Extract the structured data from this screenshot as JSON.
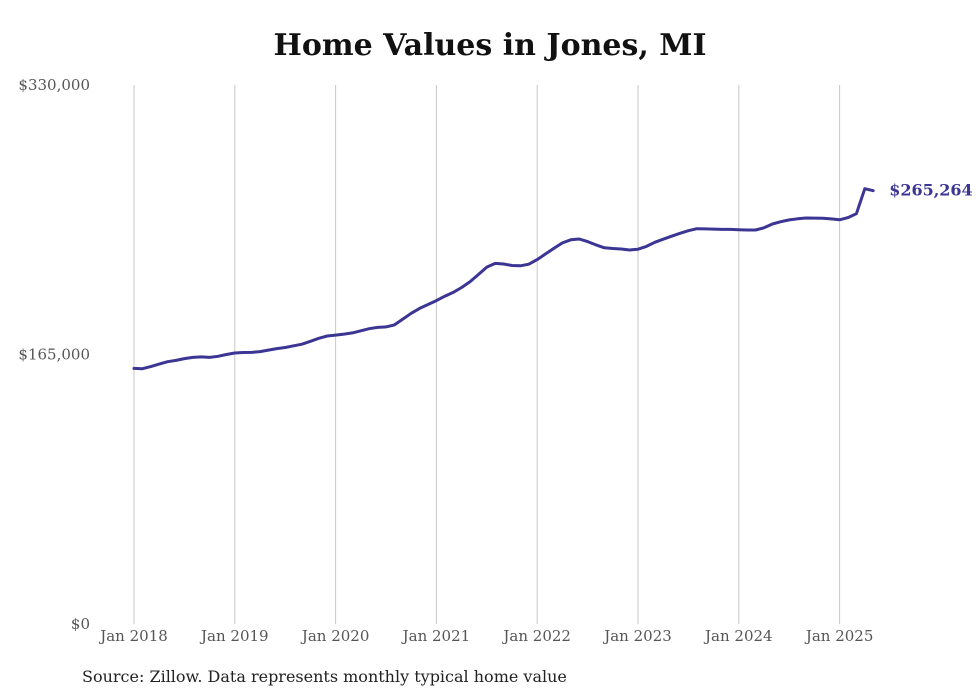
{
  "chart_data": {
    "type": "line",
    "title": "Home Values in Jones, MI",
    "xlabel": "",
    "ylabel": "",
    "ylim": [
      0,
      330000
    ],
    "y_ticks": [
      0,
      165000,
      330000
    ],
    "y_tick_labels": [
      "$0",
      "$165,000",
      "$330,000"
    ],
    "x_tick_labels": [
      "Jan 2018",
      "Jan 2019",
      "Jan 2020",
      "Jan 2021",
      "Jan 2022",
      "Jan 2023",
      "Jan 2024",
      "Jan 2025"
    ],
    "grid": "vertical",
    "line_color": "#3b3593",
    "end_label": "$265,264",
    "series": [
      {
        "x": [
          "2018-01",
          "2018-02",
          "2018-03",
          "2018-04",
          "2018-05",
          "2018-06",
          "2018-07",
          "2018-08",
          "2018-09",
          "2018-10",
          "2018-11",
          "2018-12",
          "2019-01",
          "2019-02",
          "2019-03",
          "2019-04",
          "2019-05",
          "2019-06",
          "2019-07",
          "2019-08",
          "2019-09",
          "2019-10",
          "2019-11",
          "2019-12",
          "2020-01",
          "2020-02",
          "2020-03",
          "2020-04",
          "2020-05",
          "2020-06",
          "2020-07",
          "2020-08",
          "2020-09",
          "2020-10",
          "2020-11",
          "2020-12",
          "2021-01",
          "2021-02",
          "2021-03",
          "2021-04",
          "2021-05",
          "2021-06",
          "2021-07",
          "2021-08",
          "2021-09",
          "2021-10",
          "2021-11",
          "2021-12",
          "2022-01",
          "2022-02",
          "2022-03",
          "2022-04",
          "2022-05",
          "2022-06",
          "2022-07",
          "2022-08",
          "2022-09",
          "2022-10",
          "2022-11",
          "2022-12",
          "2023-01",
          "2023-02",
          "2023-03",
          "2023-04",
          "2023-05",
          "2023-06",
          "2023-07",
          "2023-08",
          "2023-09",
          "2023-10",
          "2023-11",
          "2023-12",
          "2024-01",
          "2024-02",
          "2024-03",
          "2024-04",
          "2024-05",
          "2024-06",
          "2024-07",
          "2024-08",
          "2024-09",
          "2024-10",
          "2024-11",
          "2024-12",
          "2025-01",
          "2025-02",
          "2025-03",
          "2025-04",
          "2025-05"
        ],
        "values": [
          156500,
          156300,
          157600,
          159100,
          160600,
          161400,
          162500,
          163200,
          163500,
          163200,
          163900,
          165000,
          165900,
          166200,
          166300,
          166800,
          167700,
          168600,
          169300,
          170300,
          171300,
          173100,
          174900,
          176300,
          176900,
          177500,
          178200,
          179500,
          180800,
          181600,
          181900,
          183100,
          186700,
          190200,
          193200,
          195600,
          198000,
          200700,
          203000,
          206000,
          209500,
          214000,
          218500,
          220800,
          220400,
          219500,
          219300,
          220300,
          223100,
          226600,
          230000,
          233300,
          235200,
          235700,
          234100,
          232100,
          230300,
          229900,
          229600,
          229000,
          229500,
          231200,
          233700,
          235600,
          237400,
          239200,
          240800,
          242000,
          241900,
          241800,
          241600,
          241600,
          241400,
          241200,
          241200,
          242600,
          244900,
          246300,
          247400,
          248100,
          248600,
          248500,
          248400,
          248000,
          247500,
          248800,
          251200,
          266500,
          265264
        ]
      }
    ]
  },
  "source_note": "Source: Zillow. Data represents monthly typical home value"
}
